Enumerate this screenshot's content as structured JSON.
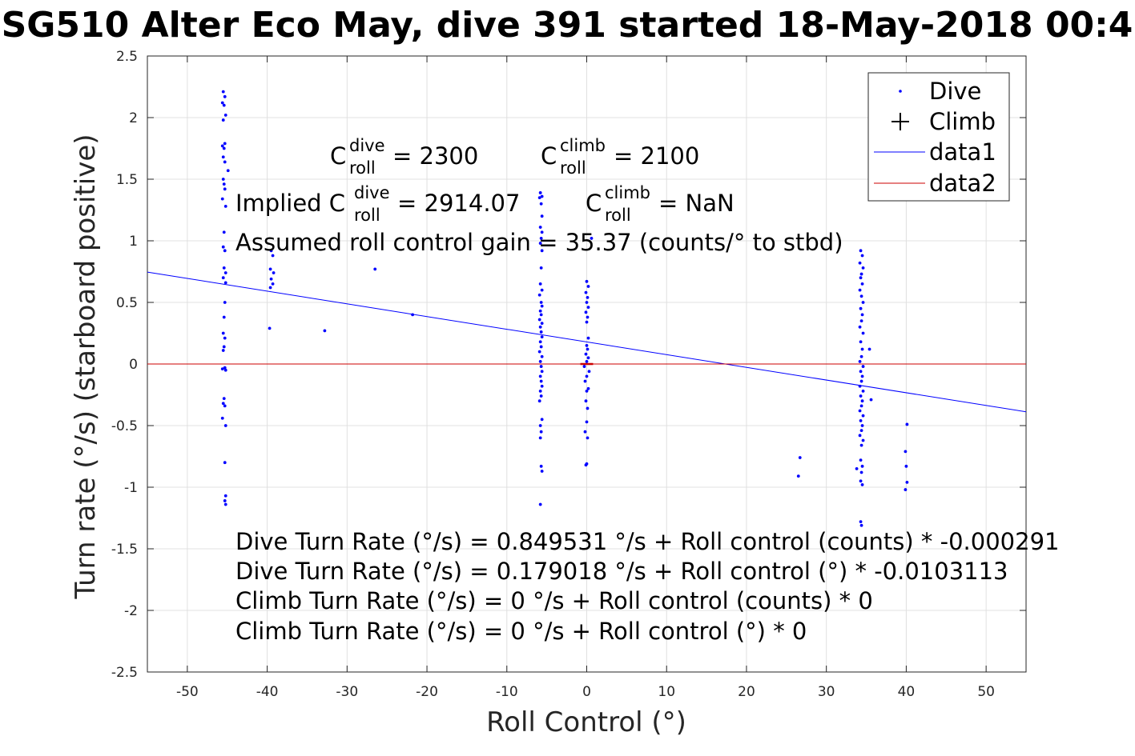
{
  "chart_data": {
    "type": "scatter",
    "title": "SG510 Alter Eco May, dive 391 started 18-May-2018 00:4",
    "xlabel": "Roll Control (°)",
    "ylabel": "Turn rate (°/s) (starboard positive)",
    "xlim": [
      -55,
      55
    ],
    "ylim": [
      -2.5,
      2.5
    ],
    "xticks": [
      -50,
      -40,
      -30,
      -20,
      -10,
      0,
      10,
      20,
      30,
      40,
      50
    ],
    "yticks": [
      -2.5,
      -2,
      -1.5,
      -1,
      -0.5,
      0,
      0.5,
      1,
      1.5,
      2,
      2.5
    ],
    "grid": true,
    "legend_position": "top-right",
    "legend": [
      {
        "label": "Dive",
        "marker": "dot",
        "color": "#0000ff"
      },
      {
        "label": "Climb",
        "marker": "plus",
        "color": "#000000"
      },
      {
        "label": "data1",
        "marker": "line",
        "color": "#0000ff"
      },
      {
        "label": "data2",
        "marker": "line",
        "color": "#cc0000"
      }
    ],
    "series": [
      {
        "name": "Dive",
        "color": "#0000ff",
        "points": [
          [
            -45.5,
            2.21
          ],
          [
            -45.3,
            2.17
          ],
          [
            -45.6,
            2.12
          ],
          [
            -45.4,
            2.1
          ],
          [
            -45.2,
            2.02
          ],
          [
            -45.5,
            1.98
          ],
          [
            -45.3,
            1.79
          ],
          [
            -45.6,
            1.77
          ],
          [
            -45.4,
            1.75
          ],
          [
            -45.5,
            1.68
          ],
          [
            -45.3,
            1.64
          ],
          [
            -44.9,
            1.57
          ],
          [
            -45.5,
            1.5
          ],
          [
            -45.4,
            1.46
          ],
          [
            -45.3,
            1.42
          ],
          [
            -45.6,
            1.34
          ],
          [
            -45.2,
            1.28
          ],
          [
            -45.4,
            1.07
          ],
          [
            -45.5,
            0.95
          ],
          [
            -45.3,
            0.92
          ],
          [
            -45.4,
            0.78
          ],
          [
            -45.2,
            0.74
          ],
          [
            -45.5,
            0.7
          ],
          [
            -45.2,
            0.66
          ],
          [
            -45.3,
            0.5
          ],
          [
            -45.4,
            0.38
          ],
          [
            -45.5,
            0.25
          ],
          [
            -45.3,
            0.21
          ],
          [
            -45.4,
            0.14
          ],
          [
            -45.5,
            0.11
          ],
          [
            -45.3,
            -0.03
          ],
          [
            -45.6,
            -0.04
          ],
          [
            -45.2,
            -0.05
          ],
          [
            -45.4,
            -0.28
          ],
          [
            -45.5,
            -0.32
          ],
          [
            -45.3,
            -0.34
          ],
          [
            -45.6,
            -0.44
          ],
          [
            -45.2,
            -0.5
          ],
          [
            -45.3,
            -0.8
          ],
          [
            -45.2,
            -1.07
          ],
          [
            -45.3,
            -1.11
          ],
          [
            -45.2,
            -1.14
          ],
          [
            -39.5,
            0.92
          ],
          [
            -39.3,
            0.88
          ],
          [
            -39.6,
            0.77
          ],
          [
            -39.2,
            0.74
          ],
          [
            -39.5,
            0.69
          ],
          [
            -39.3,
            0.65
          ],
          [
            -39.6,
            0.62
          ],
          [
            -39.7,
            0.29
          ],
          [
            -32.8,
            0.27
          ],
          [
            -26.5,
            0.77
          ],
          [
            -21.8,
            0.4
          ],
          [
            -5.8,
            1.39
          ],
          [
            -5.6,
            1.36
          ],
          [
            -5.9,
            1.35
          ],
          [
            -5.7,
            1.3
          ],
          [
            -5.6,
            1.2
          ],
          [
            -5.8,
            1.11
          ],
          [
            -5.6,
            1.07
          ],
          [
            -5.7,
            1.02
          ],
          [
            -5.8,
            0.98
          ],
          [
            -5.6,
            0.92
          ],
          [
            -5.7,
            0.78
          ],
          [
            -5.8,
            0.65
          ],
          [
            -5.6,
            0.6
          ],
          [
            -5.9,
            0.56
          ],
          [
            -5.7,
            0.5
          ],
          [
            -5.6,
            0.47
          ],
          [
            -5.8,
            0.43
          ],
          [
            -5.7,
            0.4
          ],
          [
            -5.9,
            0.36
          ],
          [
            -5.6,
            0.33
          ],
          [
            -5.8,
            0.3
          ],
          [
            -5.7,
            0.26
          ],
          [
            -5.6,
            0.22
          ],
          [
            -5.8,
            0.18
          ],
          [
            -5.7,
            0.14
          ],
          [
            -5.9,
            0.1
          ],
          [
            -5.6,
            0.06
          ],
          [
            -5.8,
            0.02
          ],
          [
            -5.7,
            -0.02
          ],
          [
            -5.6,
            -0.06
          ],
          [
            -5.8,
            -0.1
          ],
          [
            -5.7,
            -0.14
          ],
          [
            -5.6,
            -0.18
          ],
          [
            -5.8,
            -0.22
          ],
          [
            -5.7,
            -0.26
          ],
          [
            -5.9,
            -0.3
          ],
          [
            -5.6,
            -0.45
          ],
          [
            -5.8,
            -0.5
          ],
          [
            -5.7,
            -0.55
          ],
          [
            -5.8,
            -0.6
          ],
          [
            -5.7,
            -0.83
          ],
          [
            -5.6,
            -0.87
          ],
          [
            -5.8,
            -1.14
          ],
          [
            0.0,
            0.67
          ],
          [
            0.2,
            0.63
          ],
          [
            -0.1,
            0.58
          ],
          [
            0.1,
            0.54
          ],
          [
            0.0,
            0.5
          ],
          [
            0.2,
            0.46
          ],
          [
            -0.1,
            0.42
          ],
          [
            0.1,
            0.38
          ],
          [
            0.0,
            0.34
          ],
          [
            0.2,
            0.21
          ],
          [
            0.0,
            0.15
          ],
          [
            0.1,
            0.12
          ],
          [
            -0.1,
            0.08
          ],
          [
            0.2,
            0.05
          ],
          [
            0.0,
            0.02
          ],
          [
            -0.3,
            -0.02
          ],
          [
            0.3,
            -0.06
          ],
          [
            0.0,
            -0.1
          ],
          [
            -0.2,
            -0.14
          ],
          [
            0.2,
            -0.2
          ],
          [
            0.0,
            -0.22
          ],
          [
            -0.1,
            -0.3
          ],
          [
            0.1,
            -0.36
          ],
          [
            0.0,
            -0.47
          ],
          [
            -0.2,
            -0.55
          ],
          [
            0.1,
            -0.6
          ],
          [
            0.0,
            -0.81
          ],
          [
            -0.1,
            -0.82
          ],
          [
            0.6,
            1.02
          ],
          [
            26.7,
            -0.76
          ],
          [
            26.5,
            -0.91
          ],
          [
            34.3,
            0.92
          ],
          [
            34.5,
            0.88
          ],
          [
            34.2,
            0.82
          ],
          [
            34.6,
            0.78
          ],
          [
            34.4,
            0.73
          ],
          [
            34.3,
            0.7
          ],
          [
            34.5,
            0.65
          ],
          [
            34.2,
            0.6
          ],
          [
            34.4,
            0.55
          ],
          [
            34.6,
            0.5
          ],
          [
            34.3,
            0.45
          ],
          [
            34.5,
            0.4
          ],
          [
            34.4,
            0.35
          ],
          [
            34.2,
            0.3
          ],
          [
            34.6,
            0.25
          ],
          [
            34.3,
            0.18
          ],
          [
            34.5,
            0.12
          ],
          [
            34.4,
            0.06
          ],
          [
            34.2,
            0.02
          ],
          [
            34.6,
            -0.02
          ],
          [
            34.3,
            -0.06
          ],
          [
            34.5,
            -0.1
          ],
          [
            34.4,
            -0.14
          ],
          [
            34.2,
            -0.18
          ],
          [
            34.6,
            -0.22
          ],
          [
            34.3,
            -0.26
          ],
          [
            34.5,
            -0.3
          ],
          [
            34.4,
            -0.34
          ],
          [
            34.2,
            -0.38
          ],
          [
            34.6,
            -0.42
          ],
          [
            34.3,
            -0.46
          ],
          [
            34.5,
            -0.5
          ],
          [
            34.4,
            -0.54
          ],
          [
            34.2,
            -0.58
          ],
          [
            34.6,
            -0.62
          ],
          [
            34.4,
            -0.66
          ],
          [
            34.3,
            -0.78
          ],
          [
            34.5,
            -0.83
          ],
          [
            33.8,
            -0.85
          ],
          [
            34.4,
            -0.88
          ],
          [
            34.3,
            -0.95
          ],
          [
            34.5,
            -0.98
          ],
          [
            34.3,
            -1.28
          ],
          [
            34.4,
            -1.31
          ],
          [
            35.4,
            0.12
          ],
          [
            35.6,
            -0.29
          ],
          [
            40.1,
            -0.49
          ],
          [
            39.9,
            -0.71
          ],
          [
            40.0,
            -0.83
          ],
          [
            40.1,
            -0.96
          ],
          [
            39.9,
            -1.02
          ]
        ]
      },
      {
        "name": "data1",
        "color": "#0000ff",
        "x": [
          -55,
          55
        ],
        "y": [
          0.746,
          -0.388
        ]
      },
      {
        "name": "data2",
        "color": "#cc0000",
        "x": [
          -55,
          55
        ],
        "y": [
          0,
          0
        ]
      }
    ],
    "annotations": {
      "c_dive": {
        "base": "C",
        "sup": "dive",
        "sub": "roll",
        "rest": " = 2300"
      },
      "c_climb": {
        "base": "C",
        "sup": "climb",
        "sub": "roll",
        "rest": " = 2100"
      },
      "implied_dive": {
        "prefix": "Implied C",
        "sup": "dive",
        "sub": "roll",
        "rest": " = 2914.07"
      },
      "implied_climb": {
        "base": "C",
        "sup": "climb",
        "sub": "roll",
        "rest": " = NaN"
      },
      "gain": "Assumed roll control gain = 35.37 (counts/° to stbd)",
      "eq1": "Dive Turn Rate (°/s) = 0.849531 °/s + Roll control (counts) * -0.000291",
      "eq2": "Dive Turn Rate (°/s) = 0.179018 °/s + Roll control (°) * -0.0103113",
      "eq3": "Climb Turn Rate (°/s) = 0 °/s + Roll control (counts) * 0",
      "eq4": "Climb Turn Rate (°/s) = 0 °/s + Roll control (°) * 0"
    }
  }
}
